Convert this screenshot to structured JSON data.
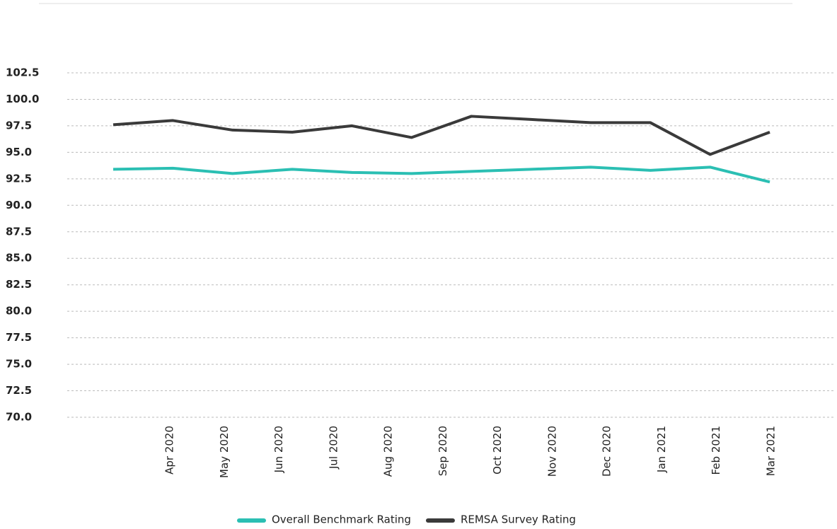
{
  "chart_data": {
    "type": "line",
    "categories": [
      "Apr 2020",
      "May 2020",
      "Jun 2020",
      "Jul 2020",
      "Aug 2020",
      "Sep 2020",
      "Oct 2020",
      "Nov 2020",
      "Dec 2020",
      "Jan 2021",
      "Feb 2021",
      "Mar 2021"
    ],
    "series": [
      {
        "name": "Overall Benchmark Rating",
        "color": "#2bbfb3",
        "values": [
          93.4,
          93.5,
          93.0,
          93.4,
          93.1,
          93.0,
          93.2,
          93.4,
          93.6,
          93.3,
          93.6,
          92.2
        ]
      },
      {
        "name": "REMSA Survey Rating",
        "color": "#3a3a3a",
        "values": [
          97.6,
          98.0,
          97.1,
          96.9,
          97.5,
          96.4,
          98.4,
          98.1,
          97.8,
          97.8,
          94.8,
          96.9
        ]
      }
    ],
    "ylim": [
      70,
      102.5
    ],
    "yticks": [
      {
        "value": 70,
        "label": "70.0"
      },
      72.5,
      {
        "value": 75,
        "label": "75.0"
      },
      77.5,
      {
        "value": 80,
        "label": "80.0"
      },
      82.5,
      {
        "value": 85,
        "label": "85.0"
      },
      87.5,
      {
        "value": 90,
        "label": "90.0"
      },
      92.5,
      {
        "value": 95,
        "label": "95.0"
      },
      97.5,
      {
        "value": 100,
        "label": "100.0"
      },
      102.5
    ],
    "grid": true,
    "legend": "bottom"
  }
}
